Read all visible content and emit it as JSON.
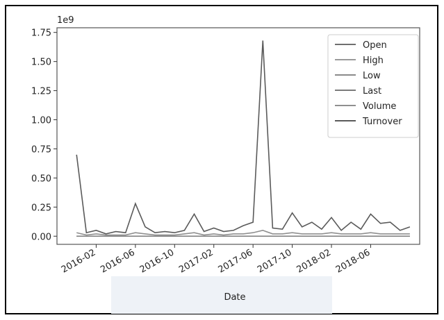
{
  "chart_data": {
    "type": "line",
    "x_label": "Date",
    "y_offset_label": "1e9",
    "x": [
      "2015-12",
      "2016-01",
      "2016-02",
      "2016-03",
      "2016-04",
      "2016-05",
      "2016-06",
      "2016-07",
      "2016-08",
      "2016-09",
      "2016-10",
      "2016-11",
      "2016-12",
      "2017-01",
      "2017-02",
      "2017-03",
      "2017-04",
      "2017-05",
      "2017-06",
      "2017-07",
      "2017-08",
      "2017-09",
      "2017-10",
      "2017-11",
      "2017-12",
      "2018-01",
      "2018-02",
      "2018-03",
      "2018-04",
      "2018-05",
      "2018-06",
      "2018-07",
      "2018-08",
      "2018-09",
      "2018-10"
    ],
    "series": [
      {
        "name": "Open",
        "color": "#6f6f6f",
        "values": [
          0,
          0,
          0,
          0,
          0,
          0,
          0,
          0,
          0,
          0,
          0,
          0,
          0,
          0,
          0,
          0,
          0,
          0,
          0,
          0,
          0,
          0,
          0,
          0,
          0,
          0,
          0,
          0,
          0,
          0,
          0,
          0,
          0,
          0,
          0
        ]
      },
      {
        "name": "High",
        "color": "#9a9a9a",
        "values": [
          0,
          0,
          0,
          0,
          0,
          0,
          0,
          0,
          0,
          0,
          0,
          0,
          0,
          0,
          0,
          0,
          0,
          0,
          0,
          0,
          0,
          0,
          0,
          0,
          0,
          0,
          0,
          0,
          0,
          0,
          0,
          0,
          0,
          0,
          0
        ]
      },
      {
        "name": "Low",
        "color": "#8a8a8a",
        "values": [
          0,
          0,
          0,
          0,
          0,
          0,
          0,
          0,
          0,
          0,
          0,
          0,
          0,
          0,
          0,
          0,
          0,
          0,
          0,
          0,
          0,
          0,
          0,
          0,
          0,
          0,
          0,
          0,
          0,
          0,
          0,
          0,
          0,
          0,
          0
        ]
      },
      {
        "name": "Last",
        "color": "#7a7a7a",
        "values": [
          0,
          0,
          0,
          0,
          0,
          0,
          0,
          0,
          0,
          0,
          0,
          0,
          0,
          0,
          0,
          0,
          0,
          0,
          0,
          0,
          0,
          0,
          0,
          0,
          0,
          0,
          0,
          0,
          0,
          0,
          0,
          0,
          0,
          0,
          0
        ]
      },
      {
        "name": "Volume",
        "color": "#8f8f8f",
        "values": [
          0.03,
          0.01,
          0.02,
          0.01,
          0.01,
          0.01,
          0.03,
          0.02,
          0.01,
          0.01,
          0.01,
          0.02,
          0.03,
          0.01,
          0.02,
          0.01,
          0.02,
          0.02,
          0.03,
          0.05,
          0.02,
          0.02,
          0.03,
          0.02,
          0.02,
          0.02,
          0.03,
          0.02,
          0.02,
          0.02,
          0.03,
          0.02,
          0.02,
          0.02,
          0.02
        ]
      },
      {
        "name": "Turnover",
        "color": "#5a5a5a",
        "values": [
          0.7,
          0.03,
          0.05,
          0.02,
          0.04,
          0.03,
          0.28,
          0.08,
          0.03,
          0.04,
          0.03,
          0.05,
          0.19,
          0.04,
          0.07,
          0.04,
          0.05,
          0.09,
          0.12,
          1.68,
          0.07,
          0.06,
          0.2,
          0.08,
          0.12,
          0.06,
          0.16,
          0.05,
          0.12,
          0.06,
          0.19,
          0.11,
          0.12,
          0.05,
          0.08
        ]
      }
    ],
    "xlim": [
      "2015-10",
      "2018-11"
    ],
    "xticks": [
      "2016-02",
      "2016-06",
      "2016-10",
      "2017-02",
      "2017-06",
      "2017-10",
      "2018-02",
      "2018-06"
    ],
    "ylim": [
      -0.07,
      1.79
    ],
    "yticks": [
      {
        "value": 0,
        "label": "0.00"
      },
      0.25,
      {
        "value": 0.5,
        "label": "0.50"
      },
      0.75,
      {
        "value": 1,
        "label": "1.00"
      },
      1.25,
      {
        "value": 1.5,
        "label": "1.50"
      },
      1.75
    ],
    "grid": false,
    "legend": "upper right"
  }
}
